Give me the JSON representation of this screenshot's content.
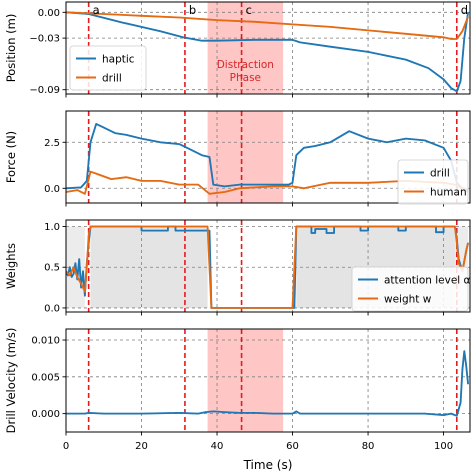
{
  "chart_data": {
    "type": "line",
    "x_axis": {
      "label": "Time (s)",
      "lim": [
        0,
        107
      ],
      "ticks": [
        0,
        20,
        40,
        60,
        80,
        100
      ],
      "tick_labels": [
        "0",
        "20",
        "40",
        "60",
        "80",
        "100"
      ]
    },
    "events": [
      {
        "label": "a",
        "x": 6
      },
      {
        "label": "b",
        "x": 31.5
      },
      {
        "label": "c",
        "x": 46.5
      },
      {
        "label": "d",
        "x": 103.5
      }
    ],
    "event_color": "#e41a1c",
    "distraction_phase": {
      "label_line1": "Distraction",
      "label_line2": "Phase",
      "x_start": 37.5,
      "x_end": 57.5,
      "color": "#ffb3b3"
    },
    "attention_low_span": {
      "x_start": 37.5,
      "x_end": 61,
      "color": "#d9d9d9"
    },
    "panels": [
      {
        "id": "position",
        "ylabel": "Position (m)",
        "ylim": [
          -0.095,
          0.012
        ],
        "yticks": [
          0.0,
          -0.03,
          -0.09
        ],
        "ytick_labels": [
          "0.00",
          "−0.03",
          "−0.09"
        ],
        "grid": true,
        "legend": "bottom-left",
        "series": [
          {
            "name": "haptic",
            "color": "#1f77b4",
            "x": [
              0,
              6,
              15,
              25,
              31,
              36,
              40,
              50,
              60,
              62,
              70,
              80,
              90,
              96,
              100,
              102,
              103.5,
              104.5,
              105.5,
              106.5
            ],
            "y": [
              0.0,
              -0.002,
              -0.012,
              -0.022,
              -0.029,
              -0.033,
              -0.033,
              -0.032,
              -0.032,
              -0.035,
              -0.04,
              -0.046,
              -0.055,
              -0.065,
              -0.078,
              -0.088,
              -0.092,
              -0.08,
              -0.03,
              0.0
            ]
          },
          {
            "name": "drill",
            "color": "#e66a12",
            "x": [
              0,
              10,
              20,
              30,
              40,
              50,
              60,
              70,
              80,
              90,
              100,
              102,
              103.5,
              105,
              106.5
            ],
            "y": [
              0.0,
              -0.002,
              -0.004,
              -0.006,
              -0.009,
              -0.011,
              -0.014,
              -0.017,
              -0.021,
              -0.025,
              -0.029,
              -0.031,
              -0.031,
              -0.022,
              -0.005
            ]
          }
        ]
      },
      {
        "id": "force",
        "ylabel": "Force (N)",
        "ylim": [
          -0.8,
          4.2
        ],
        "yticks": [
          2.5,
          0.0
        ],
        "ytick_labels": [
          "2.5",
          "0.0"
        ],
        "grid": true,
        "legend": "bottom-right",
        "series": [
          {
            "name": "drill",
            "color": "#1f77b4",
            "x": [
              0,
              4,
              5.5,
              6.5,
              8,
              10,
              13,
              16,
              20,
              25,
              30,
              33,
              36,
              38,
              39,
              42,
              46,
              50,
              55,
              59,
              60,
              61,
              63,
              66,
              70,
              75,
              80,
              85,
              90,
              95,
              100,
              102,
              103.5,
              105,
              106.5
            ],
            "y": [
              0.0,
              0.05,
              0.4,
              2.5,
              3.5,
              3.3,
              3.0,
              2.9,
              2.7,
              2.5,
              2.4,
              2.1,
              1.8,
              1.7,
              0.2,
              0.1,
              0.2,
              0.2,
              0.2,
              0.2,
              0.3,
              1.8,
              2.2,
              2.3,
              2.5,
              3.1,
              2.7,
              2.5,
              2.7,
              2.6,
              2.2,
              1.5,
              0.3,
              0.0,
              -0.1
            ]
          },
          {
            "name": "human",
            "color": "#e66a12",
            "x": [
              0,
              3,
              5,
              6.5,
              8,
              12,
              16,
              20,
              25,
              30,
              35,
              38,
              42,
              46,
              50,
              55,
              60,
              63,
              70,
              80,
              90,
              100,
              103,
              106.5
            ],
            "y": [
              -0.2,
              -0.1,
              -0.3,
              0.9,
              0.8,
              0.5,
              0.6,
              0.4,
              0.4,
              0.2,
              0.2,
              -0.3,
              -0.2,
              0.0,
              0.05,
              0.1,
              0.1,
              0.0,
              0.3,
              0.3,
              0.4,
              0.3,
              0.2,
              -0.2
            ]
          }
        ]
      },
      {
        "id": "weights",
        "ylabel": "Weights",
        "ylim": [
          -0.05,
          1.08
        ],
        "yticks": [
          1.0,
          0.5,
          0.0
        ],
        "ytick_labels": [
          "1.0",
          "0.5",
          "0.0"
        ],
        "grid": true,
        "legend": "bottom-right",
        "series": [
          {
            "name": "attention level α",
            "color": "#1f77b4",
            "x": [
              0,
              0.5,
              1,
              1.5,
              2,
              2.5,
              3,
              3.5,
              4,
              4.5,
              5,
              5.5,
              6,
              6.5,
              20,
              20,
              27,
              27,
              29,
              29,
              38,
              38.5,
              57.5,
              60.5,
              61,
              65,
              65,
              66,
              66,
              69,
              69,
              71,
              71,
              78,
              78,
              80,
              80,
              88,
              88,
              90,
              90,
              98,
              98,
              100,
              100,
              103,
              103.5,
              104,
              105,
              106,
              106.5
            ],
            "y": [
              0.45,
              0.4,
              0.5,
              0.38,
              0.42,
              0.55,
              0.35,
              0.6,
              0.25,
              0.45,
              0.15,
              0.55,
              0.8,
              1.0,
              1.0,
              0.95,
              0.95,
              1.0,
              1.0,
              0.95,
              0.95,
              0.0,
              0.0,
              0.0,
              1.0,
              1.0,
              0.92,
              0.92,
              0.97,
              0.97,
              0.92,
              0.92,
              1.0,
              1.0,
              0.95,
              0.95,
              1.0,
              1.0,
              0.95,
              0.95,
              1.0,
              1.0,
              0.93,
              0.93,
              1.0,
              1.0,
              0.85,
              0.6,
              0.45,
              0.7,
              0.8
            ]
          },
          {
            "name": "weight w",
            "color": "#e66a12",
            "x": [
              0,
              1,
              2,
              3,
              4,
              5,
              5.5,
              6,
              6.5,
              37.5,
              38.5,
              57.5,
              60,
              61,
              103,
              103.5,
              104,
              105,
              106,
              106.5
            ],
            "y": [
              0.45,
              0.4,
              0.5,
              0.38,
              0.3,
              0.2,
              0.5,
              0.9,
              1.0,
              1.0,
              0.0,
              0.0,
              0.0,
              1.0,
              1.0,
              0.8,
              0.55,
              0.45,
              0.7,
              0.8
            ]
          }
        ]
      },
      {
        "id": "velocity",
        "ylabel": "Drill Velocity (m/s)",
        "ylim": [
          -0.0025,
          0.0115
        ],
        "yticks": [
          0.01,
          0.005,
          0.0
        ],
        "ytick_labels": [
          "0.010",
          "0.005",
          "0.000"
        ],
        "grid": true,
        "legend": "none",
        "series": [
          {
            "name": "velocity",
            "color": "#1f77b4",
            "x": [
              0,
              5,
              6,
              10,
              20,
              30,
              35,
              37,
              39,
              42,
              46,
              50,
              55,
              57,
              60,
              61,
              62,
              70,
              80,
              90,
              95,
              100,
              102,
              103.5,
              104.5,
              105,
              105.5,
              106,
              106.5
            ],
            "y": [
              0.0,
              0.0,
              0.0001,
              0.0,
              0.0,
              0.0001,
              0.0,
              0.0002,
              0.0003,
              0.0002,
              0.0001,
              0.0001,
              0.0,
              0.0,
              0.0,
              0.0003,
              0.0,
              0.0,
              0.0,
              0.0,
              0.0,
              -0.0002,
              0.0,
              -0.0003,
              0.0015,
              0.006,
              0.0085,
              0.0065,
              0.004
            ]
          }
        ]
      }
    ]
  }
}
